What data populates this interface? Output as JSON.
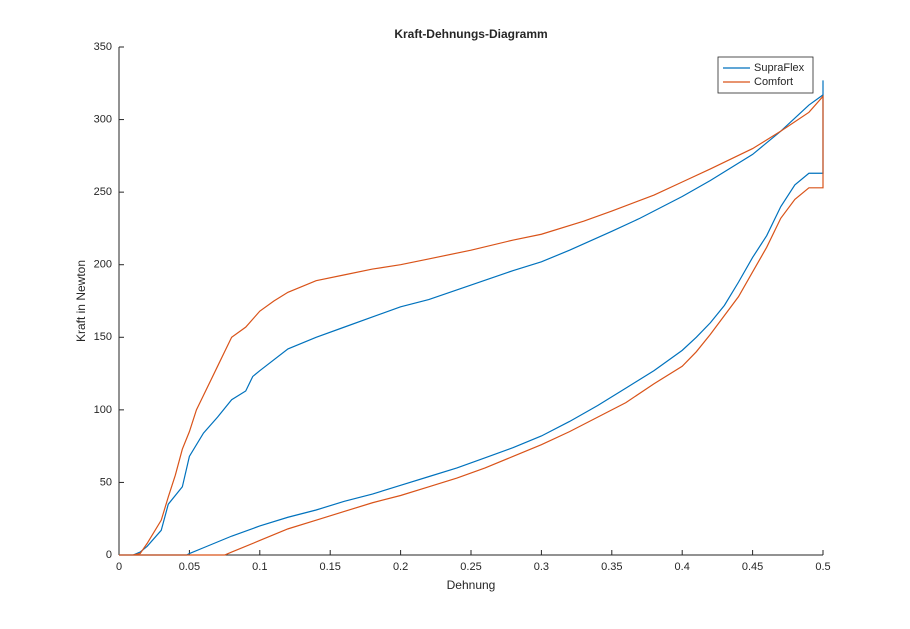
{
  "chart_data": {
    "type": "line",
    "title": "Kraft-Dehnungs-Diagramm",
    "x_label": "Dehnung",
    "y_label": "Kraft in Newton",
    "legend": "upper right",
    "xlim": [
      0,
      0.5
    ],
    "xticks": [
      0,
      0.05,
      0.1,
      0.15,
      0.2,
      0.25,
      0.3,
      0.35,
      0.4,
      0.45,
      0.5
    ],
    "ylim": [
      0,
      350
    ],
    "yticks": [
      0,
      50,
      100,
      150,
      200,
      250,
      300,
      350
    ],
    "series": [
      {
        "name": "SupraFlex",
        "color": "#0072bd",
        "x": [
          0,
          0.01,
          0.015,
          0.02,
          0.03,
          0.035,
          0.045,
          0.05,
          0.06,
          0.07,
          0.08,
          0.09,
          0.095,
          0.1,
          0.12,
          0.14,
          0.16,
          0.18,
          0.2,
          0.22,
          0.25,
          0.28,
          0.3,
          0.32,
          0.35,
          0.37,
          0.4,
          0.42,
          0.45,
          0.47,
          0.49,
          0.5,
          0.5,
          0.5,
          0.49,
          0.48,
          0.47,
          0.46,
          0.45,
          0.44,
          0.43,
          0.42,
          0.41,
          0.4,
          0.38,
          0.36,
          0.34,
          0.32,
          0.3,
          0.28,
          0.26,
          0.24,
          0.22,
          0.2,
          0.18,
          0.16,
          0.14,
          0.12,
          0.1,
          0.08,
          0.06,
          0.05,
          0.048,
          0
        ],
        "values": [
          0,
          0,
          2,
          6,
          17,
          35,
          47,
          68,
          84,
          95,
          107,
          113,
          123,
          127,
          142,
          150,
          157,
          164,
          171,
          176,
          186,
          196,
          202,
          210,
          223,
          232,
          247,
          258,
          276,
          292,
          310,
          317,
          327,
          263,
          263,
          255,
          240,
          220,
          205,
          188,
          172,
          160,
          150,
          141,
          127,
          115,
          103,
          92,
          82,
          74,
          67,
          60,
          54,
          48,
          42,
          37,
          31,
          26,
          20,
          13,
          5,
          1,
          0,
          0
        ]
      },
      {
        "name": "Comfort",
        "color": "#d95319",
        "x": [
          0,
          0.01,
          0.015,
          0.02,
          0.03,
          0.035,
          0.04,
          0.045,
          0.05,
          0.055,
          0.06,
          0.065,
          0.07,
          0.075,
          0.08,
          0.09,
          0.1,
          0.11,
          0.12,
          0.14,
          0.16,
          0.18,
          0.2,
          0.22,
          0.25,
          0.28,
          0.3,
          0.33,
          0.35,
          0.38,
          0.4,
          0.42,
          0.45,
          0.47,
          0.49,
          0.5,
          0.5,
          0.49,
          0.48,
          0.47,
          0.46,
          0.45,
          0.44,
          0.43,
          0.42,
          0.41,
          0.4,
          0.38,
          0.36,
          0.34,
          0.32,
          0.3,
          0.28,
          0.26,
          0.24,
          0.22,
          0.2,
          0.18,
          0.16,
          0.14,
          0.12,
          0.1,
          0.08,
          0.075,
          0
        ],
        "values": [
          0,
          0,
          1,
          8,
          24,
          40,
          55,
          73,
          85,
          100,
          110,
          120,
          130,
          140,
          150,
          157,
          168,
          175,
          181,
          189,
          193,
          197,
          200,
          204,
          210,
          217,
          221,
          230,
          237,
          248,
          257,
          266,
          280,
          292,
          305,
          316,
          253,
          253,
          245,
          232,
          212,
          195,
          178,
          165,
          152,
          140,
          130,
          118,
          105,
          95,
          85,
          76,
          68,
          60,
          53,
          47,
          41,
          36,
          30,
          24,
          18,
          10,
          2,
          0,
          0
        ]
      }
    ]
  }
}
